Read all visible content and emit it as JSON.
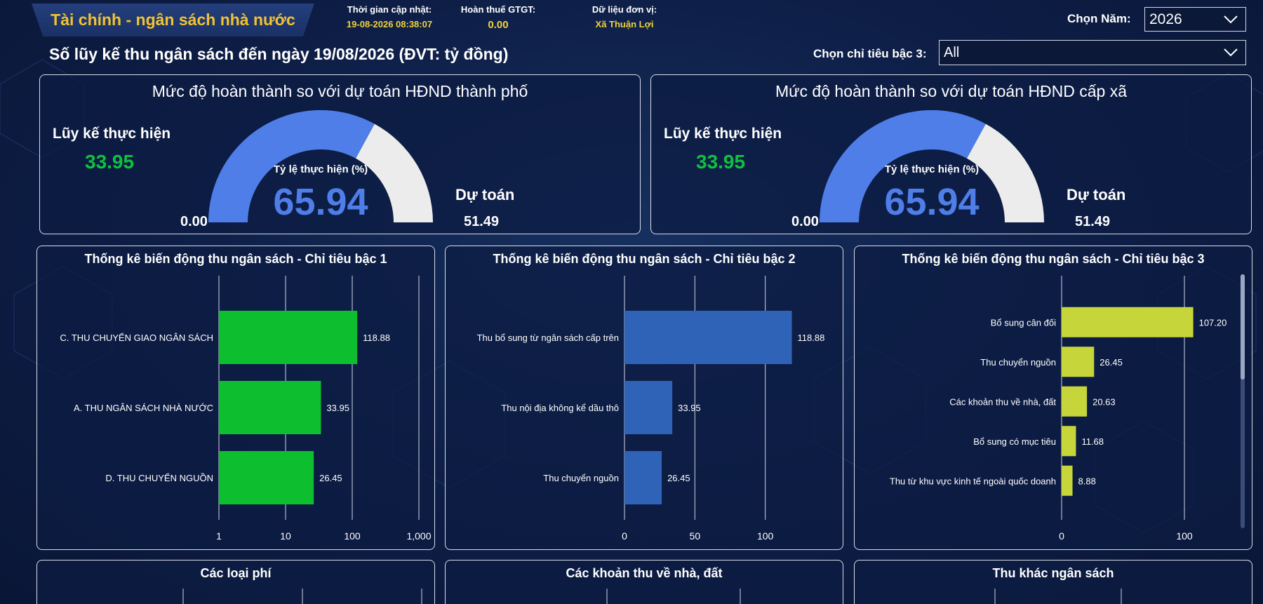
{
  "header": {
    "title": "Tài chính - ngân sách nhà nước",
    "update_label": "Thời gian cập nhật:",
    "update_value": "19-08-2026 08:38:07",
    "vat_label": "Hoàn thuế GTGT:",
    "vat_value": "0.00",
    "unit_label": "Dữ liệu đơn vị:",
    "unit_value": "Xã Thuận Lợi",
    "year_label": "Chọn Năm:",
    "year_value": "2026",
    "subtitle": "Số lũy kế thu ngân sách đến ngày 19/08/2026 (ĐVT: tỷ đồng)",
    "level3_label": "Chọn chỉ tiêu bậc 3:",
    "level3_value": "All"
  },
  "colors": {
    "gauge_fill": "#4f7ee8",
    "gauge_rest": "#ececec",
    "green_bar": "#0dbf2e",
    "blue_bar": "#2f63b8",
    "yellow_bar": "#c6d63a",
    "kpi_green": "#10c040",
    "title_gold": "#f2c230",
    "meta_gold": "#f2d23a"
  },
  "gauges": [
    {
      "title": "Mức độ hoàn thành so với dự toán HĐND thành phố",
      "kpi_label": "Lũy kế thực hiện",
      "kpi_value": "33.95",
      "ratio_label": "Tỷ lệ thực hiện (%)",
      "ratio_value": "65.94",
      "min_label": "0.00",
      "target_label": "Dự toán",
      "target_value": "51.49",
      "fraction": 0.6594
    },
    {
      "title": "Mức độ hoàn thành so với dự toán HĐND cấp xã",
      "kpi_label": "Lũy kế thực hiện",
      "kpi_value": "33.95",
      "ratio_label": "Tỷ lệ thực hiện (%)",
      "ratio_value": "65.94",
      "min_label": "0.00",
      "target_label": "Dự toán",
      "target_value": "51.49",
      "fraction": 0.6594
    }
  ],
  "bottom_titles": [
    "Các loại phí",
    "Các khoản thu về nhà, đất",
    "Thu khác ngân sách"
  ],
  "chart_data": [
    {
      "type": "bar",
      "orientation": "horizontal",
      "title": "Thống kê biến động thu ngân sách - Chỉ tiêu bậc 1",
      "xscale": "log",
      "xlim": [
        1,
        1000
      ],
      "xticks": [
        "1",
        "10",
        "100",
        "1,000"
      ],
      "grid": true,
      "categories": [
        "C. THU CHUYỂN GIAO NGÂN SÁCH",
        "A. THU NGÂN SÁCH NHÀ NƯỚC",
        "D. THU CHUYỂN NGUỒN"
      ],
      "values": [
        118.88,
        33.95,
        26.45
      ],
      "value_labels": [
        "118.88",
        "33.95",
        "26.45"
      ],
      "color": "#0dbf2e"
    },
    {
      "type": "bar",
      "orientation": "horizontal",
      "title": "Thống kê biến động thu ngân sách - Chỉ tiêu bậc 2",
      "xscale": "linear",
      "xlim": [
        0,
        150
      ],
      "xticks": [
        "0",
        "50",
        "100"
      ],
      "grid": true,
      "categories": [
        "Thu bổ sung từ ngân sách cấp trên",
        "Thu nội địa không kể dầu thô",
        "Thu chuyển nguồn"
      ],
      "values": [
        118.88,
        33.95,
        26.45
      ],
      "value_labels": [
        "118.88",
        "33.95",
        "26.45"
      ],
      "color": "#2f63b8"
    },
    {
      "type": "bar",
      "orientation": "horizontal",
      "title": "Thống kê biến động thu ngân sách - Chỉ tiêu bậc 3",
      "xscale": "linear",
      "xlim": [
        0,
        140
      ],
      "xticks": [
        "0",
        "100"
      ],
      "grid": true,
      "categories": [
        "Bổ sung cân đối",
        "Thu chuyển nguồn",
        "Các khoản thu về nhà, đất",
        "Bổ sung có mục tiêu",
        "Thu từ khu vực kinh tế ngoài quốc doanh"
      ],
      "values": [
        107.2,
        26.45,
        20.63,
        11.68,
        8.88
      ],
      "value_labels": [
        "107.20",
        "26.45",
        "20.63",
        "11.68",
        "8.88"
      ],
      "color": "#c6d63a"
    }
  ]
}
